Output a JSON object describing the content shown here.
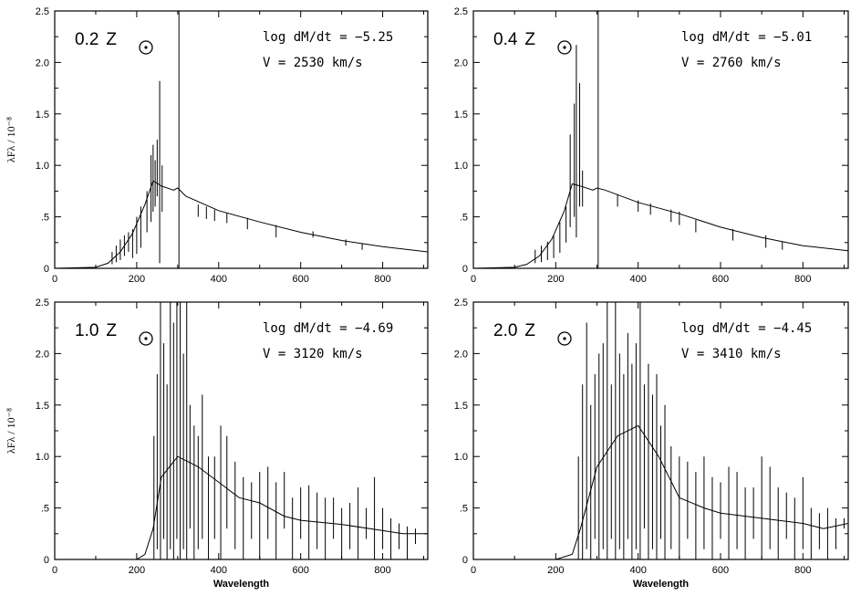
{
  "figure": {
    "xlabel": "Wavelength",
    "ylabel": "λFλ / 10⁻⁸"
  },
  "chart_data": [
    {
      "type": "line",
      "panel": "top-left",
      "z_number": "0.2",
      "z_unit": "Z",
      "mdot_label": "log dM/dt = −5.25",
      "v_label": "V = 2530 km/s",
      "xlim": [
        0,
        910
      ],
      "ylim": [
        0,
        2.5
      ],
      "x_ticks": [
        "0",
        "200",
        "400",
        "600",
        "800"
      ],
      "y_ticks": [
        "0",
        ".5",
        "1.0",
        "1.5",
        "2.0",
        "2.5"
      ],
      "continuum": {
        "x": [
          0,
          100,
          130,
          160,
          190,
          220,
          240,
          260,
          290,
          300,
          320,
          400,
          500,
          600,
          700,
          800,
          910
        ],
        "y": [
          0,
          0.01,
          0.05,
          0.16,
          0.34,
          0.62,
          0.85,
          0.8,
          0.76,
          0.78,
          0.7,
          0.56,
          0.45,
          0.35,
          0.27,
          0.21,
          0.16
        ]
      },
      "features": [
        {
          "x": 140,
          "y": 0.04,
          "y2": 0.16
        },
        {
          "x": 150,
          "y": 0.06,
          "y2": 0.22
        },
        {
          "x": 160,
          "y": 0.08,
          "y2": 0.28
        },
        {
          "x": 170,
          "y": 0.12,
          "y2": 0.32
        },
        {
          "x": 180,
          "y": 0.16,
          "y2": 0.35
        },
        {
          "x": 190,
          "y": 0.1,
          "y2": 0.38
        },
        {
          "x": 200,
          "y": 0.14,
          "y2": 0.5
        },
        {
          "x": 210,
          "y": 0.2,
          "y2": 0.6
        },
        {
          "x": 225,
          "y": 0.35,
          "y2": 0.75
        },
        {
          "x": 235,
          "y": 0.45,
          "y2": 1.1
        },
        {
          "x": 240,
          "y": 0.55,
          "y2": 1.2
        },
        {
          "x": 245,
          "y": 0.6,
          "y2": 1.05
        },
        {
          "x": 250,
          "y": 0.7,
          "y2": 1.25
        },
        {
          "x": 256,
          "y": 0.05,
          "y2": 1.82
        },
        {
          "x": 262,
          "y": 0.55,
          "y2": 1.0
        },
        {
          "x": 303,
          "y": 0.0,
          "y2": 2.5
        },
        {
          "x": 350,
          "y": 0.5,
          "y2": 0.62
        },
        {
          "x": 370,
          "y": 0.48,
          "y2": 0.6
        },
        {
          "x": 390,
          "y": 0.46,
          "y2": 0.57
        },
        {
          "x": 420,
          "y": 0.44,
          "y2": 0.54
        },
        {
          "x": 470,
          "y": 0.38,
          "y2": 0.49
        },
        {
          "x": 540,
          "y": 0.3,
          "y2": 0.42
        },
        {
          "x": 630,
          "y": 0.3,
          "y2": 0.36
        },
        {
          "x": 710,
          "y": 0.22,
          "y2": 0.28
        },
        {
          "x": 750,
          "y": 0.18,
          "y2": 0.24
        }
      ]
    },
    {
      "type": "line",
      "panel": "top-right",
      "z_number": "0.4",
      "z_unit": "Z",
      "mdot_label": "log dM/dt = −5.01",
      "v_label": "V = 2760 km/s",
      "xlim": [
        0,
        910
      ],
      "ylim": [
        0,
        2.5
      ],
      "x_ticks": [
        "0",
        "200",
        "400",
        "600",
        "800"
      ],
      "y_ticks": [
        "0",
        ".5",
        "1.0",
        "1.5",
        "2.0",
        "2.5"
      ],
      "continuum": {
        "x": [
          0,
          100,
          130,
          160,
          190,
          220,
          240,
          260,
          290,
          300,
          320,
          400,
          500,
          600,
          700,
          800,
          910
        ],
        "y": [
          0,
          0.01,
          0.04,
          0.12,
          0.28,
          0.55,
          0.82,
          0.8,
          0.76,
          0.78,
          0.76,
          0.64,
          0.53,
          0.4,
          0.3,
          0.22,
          0.17
        ]
      },
      "features": [
        {
          "x": 150,
          "y": 0.05,
          "y2": 0.18
        },
        {
          "x": 165,
          "y": 0.06,
          "y2": 0.22
        },
        {
          "x": 180,
          "y": 0.08,
          "y2": 0.26
        },
        {
          "x": 195,
          "y": 0.1,
          "y2": 0.32
        },
        {
          "x": 210,
          "y": 0.15,
          "y2": 0.45
        },
        {
          "x": 225,
          "y": 0.25,
          "y2": 0.6
        },
        {
          "x": 235,
          "y": 0.4,
          "y2": 1.3
        },
        {
          "x": 245,
          "y": 0.5,
          "y2": 1.6
        },
        {
          "x": 250,
          "y": 0.3,
          "y2": 2.17
        },
        {
          "x": 258,
          "y": 0.6,
          "y2": 1.8
        },
        {
          "x": 265,
          "y": 0.6,
          "y2": 0.95
        },
        {
          "x": 303,
          "y": 0.0,
          "y2": 2.5
        },
        {
          "x": 350,
          "y": 0.6,
          "y2": 0.72
        },
        {
          "x": 400,
          "y": 0.55,
          "y2": 0.66
        },
        {
          "x": 430,
          "y": 0.52,
          "y2": 0.63
        },
        {
          "x": 480,
          "y": 0.45,
          "y2": 0.57
        },
        {
          "x": 500,
          "y": 0.42,
          "y2": 0.55
        },
        {
          "x": 540,
          "y": 0.35,
          "y2": 0.47
        },
        {
          "x": 630,
          "y": 0.27,
          "y2": 0.38
        },
        {
          "x": 710,
          "y": 0.2,
          "y2": 0.32
        },
        {
          "x": 750,
          "y": 0.18,
          "y2": 0.26
        }
      ]
    },
    {
      "type": "line",
      "panel": "bottom-left",
      "z_number": "1.0",
      "z_unit": "Z",
      "mdot_label": "log dM/dt = −4.69",
      "v_label": "V = 3120 km/s",
      "xlim": [
        0,
        910
      ],
      "ylim": [
        0,
        2.5
      ],
      "x_ticks": [
        "0",
        "200",
        "400",
        "600",
        "800"
      ],
      "y_ticks": [
        "0",
        ".5",
        "1.0",
        "1.5",
        "2.0",
        "2.5"
      ],
      "continuum": {
        "x": [
          0,
          200,
          220,
          240,
          260,
          300,
          350,
          400,
          450,
          500,
          560,
          600,
          700,
          800,
          850,
          910
        ],
        "y": [
          0,
          0,
          0.05,
          0.3,
          0.8,
          1.0,
          0.9,
          0.75,
          0.6,
          0.55,
          0.42,
          0.38,
          0.34,
          0.28,
          0.25,
          0.25
        ]
      },
      "features": [
        {
          "x": 242,
          "y": 0.0,
          "y2": 1.2
        },
        {
          "x": 250,
          "y": 0.1,
          "y2": 1.8
        },
        {
          "x": 258,
          "y": 0.0,
          "y2": 2.5
        },
        {
          "x": 266,
          "y": 0.2,
          "y2": 2.1
        },
        {
          "x": 274,
          "y": 0.0,
          "y2": 1.7
        },
        {
          "x": 282,
          "y": 0.1,
          "y2": 2.5
        },
        {
          "x": 290,
          "y": 0.0,
          "y2": 2.3
        },
        {
          "x": 298,
          "y": 0.2,
          "y2": 2.5
        },
        {
          "x": 306,
          "y": 0.0,
          "y2": 2.5
        },
        {
          "x": 314,
          "y": 0.1,
          "y2": 2.0
        },
        {
          "x": 322,
          "y": 0.0,
          "y2": 2.5
        },
        {
          "x": 330,
          "y": 0.3,
          "y2": 1.5
        },
        {
          "x": 340,
          "y": 0.0,
          "y2": 1.3
        },
        {
          "x": 350,
          "y": 0.1,
          "y2": 1.2
        },
        {
          "x": 360,
          "y": 0.2,
          "y2": 1.6
        },
        {
          "x": 375,
          "y": 0.0,
          "y2": 1.0
        },
        {
          "x": 390,
          "y": 0.2,
          "y2": 1.0
        },
        {
          "x": 405,
          "y": 0.0,
          "y2": 1.3
        },
        {
          "x": 420,
          "y": 0.3,
          "y2": 1.2
        },
        {
          "x": 440,
          "y": 0.1,
          "y2": 0.95
        },
        {
          "x": 460,
          "y": 0.0,
          "y2": 0.8
        },
        {
          "x": 480,
          "y": 0.2,
          "y2": 0.75
        },
        {
          "x": 500,
          "y": 0.0,
          "y2": 0.85
        },
        {
          "x": 520,
          "y": 0.2,
          "y2": 0.9
        },
        {
          "x": 540,
          "y": 0.0,
          "y2": 0.75
        },
        {
          "x": 560,
          "y": 0.3,
          "y2": 0.85
        },
        {
          "x": 580,
          "y": 0.0,
          "y2": 0.6
        },
        {
          "x": 600,
          "y": 0.2,
          "y2": 0.7
        },
        {
          "x": 620,
          "y": 0.0,
          "y2": 0.72
        },
        {
          "x": 640,
          "y": 0.1,
          "y2": 0.65
        },
        {
          "x": 660,
          "y": 0.0,
          "y2": 0.6
        },
        {
          "x": 680,
          "y": 0.2,
          "y2": 0.6
        },
        {
          "x": 700,
          "y": 0.0,
          "y2": 0.5
        },
        {
          "x": 720,
          "y": 0.1,
          "y2": 0.55
        },
        {
          "x": 740,
          "y": 0.0,
          "y2": 0.7
        },
        {
          "x": 760,
          "y": 0.2,
          "y2": 0.5
        },
        {
          "x": 780,
          "y": 0.0,
          "y2": 0.8
        },
        {
          "x": 800,
          "y": 0.1,
          "y2": 0.5
        },
        {
          "x": 820,
          "y": 0.0,
          "y2": 0.4
        },
        {
          "x": 840,
          "y": 0.1,
          "y2": 0.35
        },
        {
          "x": 860,
          "y": 0.0,
          "y2": 0.32
        },
        {
          "x": 880,
          "y": 0.15,
          "y2": 0.3
        }
      ]
    },
    {
      "type": "line",
      "panel": "bottom-right",
      "z_number": "2.0",
      "z_unit": "Z",
      "mdot_label": "log dM/dt = −4.45",
      "v_label": "V = 3410 km/s",
      "xlim": [
        0,
        910
      ],
      "ylim": [
        0,
        2.5
      ],
      "x_ticks": [
        "0",
        "200",
        "400",
        "600",
        "800"
      ],
      "y_ticks": [
        "0",
        ".5",
        "1.0",
        "1.5",
        "2.0",
        "2.5"
      ],
      "continuum": {
        "x": [
          0,
          200,
          240,
          260,
          300,
          350,
          400,
          450,
          500,
          560,
          600,
          700,
          800,
          850,
          910
        ],
        "y": [
          0,
          0,
          0.05,
          0.3,
          0.9,
          1.2,
          1.3,
          1.0,
          0.6,
          0.5,
          0.45,
          0.4,
          0.35,
          0.3,
          0.35
        ]
      },
      "features": [
        {
          "x": 255,
          "y": 0.0,
          "y2": 1.0
        },
        {
          "x": 265,
          "y": 0.0,
          "y2": 1.7
        },
        {
          "x": 275,
          "y": 0.1,
          "y2": 2.3
        },
        {
          "x": 285,
          "y": 0.0,
          "y2": 1.5
        },
        {
          "x": 295,
          "y": 0.2,
          "y2": 1.8
        },
        {
          "x": 305,
          "y": 0.0,
          "y2": 2.0
        },
        {
          "x": 315,
          "y": 0.1,
          "y2": 2.1
        },
        {
          "x": 325,
          "y": 0.0,
          "y2": 2.5
        },
        {
          "x": 335,
          "y": 0.2,
          "y2": 1.7
        },
        {
          "x": 345,
          "y": 0.0,
          "y2": 2.5
        },
        {
          "x": 355,
          "y": 0.1,
          "y2": 2.0
        },
        {
          "x": 365,
          "y": 0.0,
          "y2": 1.8
        },
        {
          "x": 375,
          "y": 0.2,
          "y2": 2.2
        },
        {
          "x": 385,
          "y": 0.0,
          "y2": 1.9
        },
        {
          "x": 395,
          "y": 0.1,
          "y2": 2.1
        },
        {
          "x": 405,
          "y": 0.0,
          "y2": 2.5
        },
        {
          "x": 415,
          "y": 0.3,
          "y2": 1.7
        },
        {
          "x": 425,
          "y": 0.0,
          "y2": 1.9
        },
        {
          "x": 435,
          "y": 0.1,
          "y2": 1.6
        },
        {
          "x": 445,
          "y": 0.0,
          "y2": 1.8
        },
        {
          "x": 455,
          "y": 0.2,
          "y2": 1.3
        },
        {
          "x": 465,
          "y": 0.0,
          "y2": 1.5
        },
        {
          "x": 480,
          "y": 0.1,
          "y2": 1.1
        },
        {
          "x": 500,
          "y": 0.0,
          "y2": 1.0
        },
        {
          "x": 520,
          "y": 0.2,
          "y2": 0.95
        },
        {
          "x": 540,
          "y": 0.0,
          "y2": 0.85
        },
        {
          "x": 560,
          "y": 0.1,
          "y2": 1.0
        },
        {
          "x": 580,
          "y": 0.0,
          "y2": 0.8
        },
        {
          "x": 600,
          "y": 0.2,
          "y2": 0.75
        },
        {
          "x": 620,
          "y": 0.0,
          "y2": 0.9
        },
        {
          "x": 640,
          "y": 0.1,
          "y2": 0.85
        },
        {
          "x": 660,
          "y": 0.0,
          "y2": 0.7
        },
        {
          "x": 680,
          "y": 0.2,
          "y2": 0.7
        },
        {
          "x": 700,
          "y": 0.0,
          "y2": 1.0
        },
        {
          "x": 720,
          "y": 0.1,
          "y2": 0.9
        },
        {
          "x": 740,
          "y": 0.0,
          "y2": 0.7
        },
        {
          "x": 760,
          "y": 0.2,
          "y2": 0.65
        },
        {
          "x": 780,
          "y": 0.0,
          "y2": 0.6
        },
        {
          "x": 800,
          "y": 0.1,
          "y2": 0.8
        },
        {
          "x": 820,
          "y": 0.0,
          "y2": 0.5
        },
        {
          "x": 840,
          "y": 0.1,
          "y2": 0.45
        },
        {
          "x": 860,
          "y": 0.0,
          "y2": 0.5
        },
        {
          "x": 880,
          "y": 0.1,
          "y2": 0.4
        },
        {
          "x": 900,
          "y": 0.3,
          "y2": 0.4
        }
      ]
    }
  ]
}
